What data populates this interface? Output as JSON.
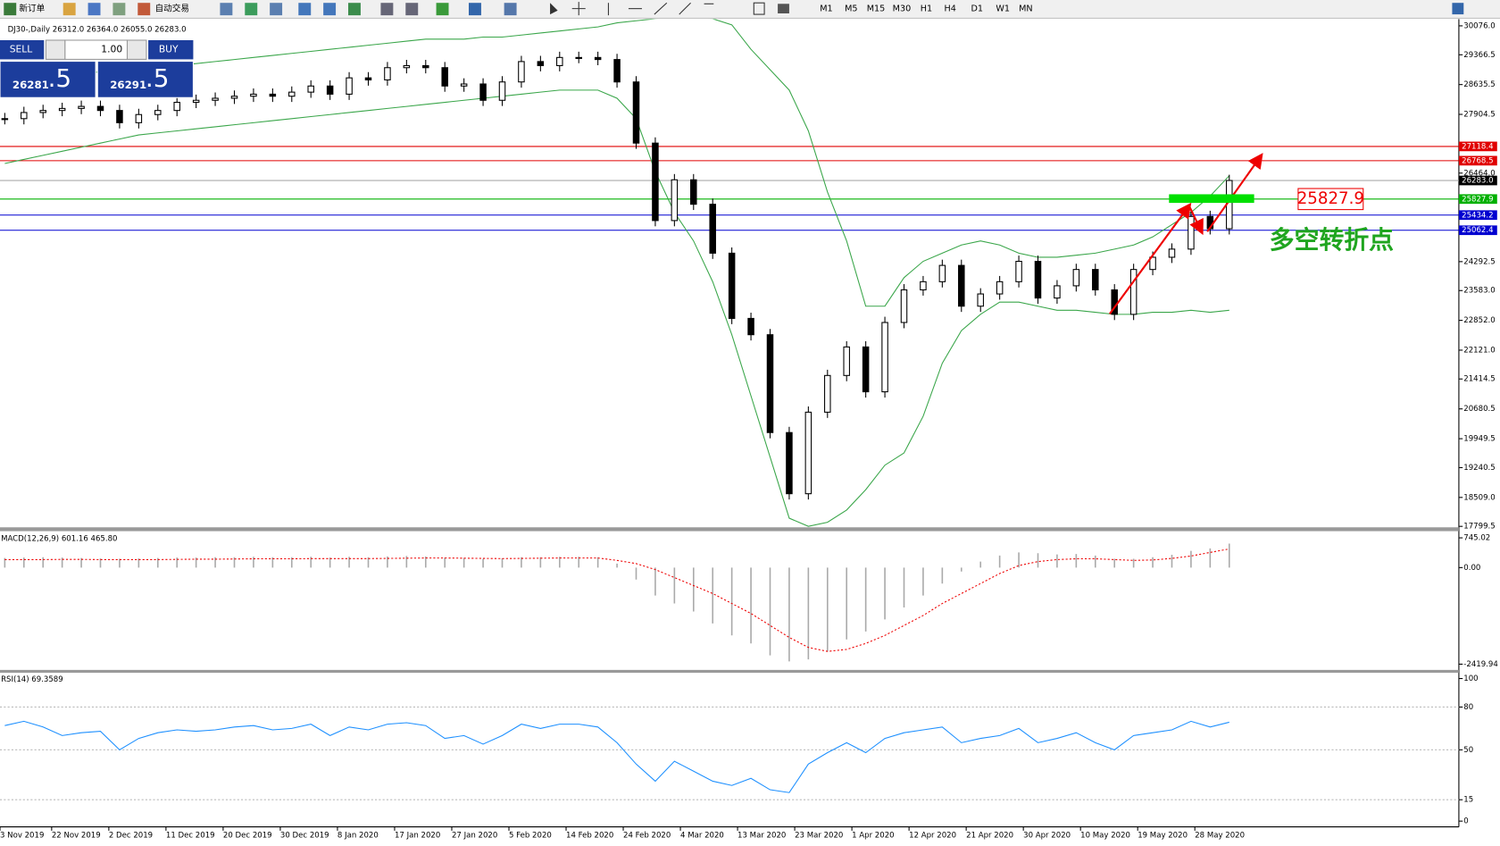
{
  "toolbar": {
    "new_order": "新订单",
    "auto_trading": "自动交易",
    "timeframes": [
      "M1",
      "M5",
      "M15",
      "M30",
      "H1",
      "H4",
      "D1",
      "W1",
      "MN"
    ]
  },
  "chart": {
    "header": "DJ30-,Daily  26312.0 26364.0 26055.0 26283.0",
    "one_click": {
      "sell": "SELL",
      "lot": "1.00",
      "buy": "BUY",
      "sell_price": "26281",
      "sell_pips": ".5",
      "buy_price": "26291",
      "buy_pips": ".5"
    },
    "price": {
      "ylim": [
        17799.5,
        30076.0
      ],
      "yticks": [
        {
          "value": 30076.0,
          "label": "30076.0"
        },
        {
          "value": 29366.5,
          "label": "29366.5"
        },
        {
          "value": 28635.5,
          "label": "28635.5"
        },
        {
          "value": 27904.5,
          "label": "27904.5"
        },
        {
          "value": 26464.0,
          "label": "26464.0"
        },
        {
          "value": 24292.5,
          "label": "24292.5"
        },
        {
          "value": 23583.0,
          "label": "23583.0"
        },
        {
          "value": 22852.0,
          "label": "22852.0"
        },
        {
          "value": 22121.0,
          "label": "22121.0"
        },
        {
          "value": 21414.5,
          "label": "21414.5"
        },
        {
          "value": 20680.5,
          "label": "20680.5"
        },
        {
          "value": 19949.5,
          "label": "19949.5"
        },
        {
          "value": 19240.5,
          "label": "19240.5"
        },
        {
          "value": 18509.0,
          "label": "18509.0"
        },
        {
          "value": 17799.5,
          "label": "17799.5"
        }
      ],
      "levels": [
        {
          "value": 27118.4,
          "label": "27118.4",
          "color": "#e00000"
        },
        {
          "value": 26768.5,
          "label": "26768.5",
          "color": "#e00000"
        },
        {
          "value": 26283.0,
          "label": "26283.0",
          "color": "#000000"
        },
        {
          "value": 25827.9,
          "label": "25827.9",
          "color": "#00b000"
        },
        {
          "value": 25434.2,
          "label": "25434.2",
          "color": "#0000d0"
        },
        {
          "value": 25062.4,
          "label": "25062.4",
          "color": "#0000d0"
        }
      ],
      "closes": [
        27800,
        27950,
        28000,
        28050,
        28100,
        28000,
        27700,
        27900,
        28000,
        28200,
        28250,
        28300,
        28350,
        28400,
        28350,
        28450,
        28600,
        28400,
        28800,
        28750,
        29050,
        29100,
        29050,
        28600,
        28650,
        28250,
        28700,
        29200,
        29100,
        29300,
        29300,
        29250,
        28700,
        27200,
        25300,
        26300,
        25700,
        24500,
        22900,
        22500,
        20100,
        18600,
        20600,
        21500,
        22200,
        21100,
        22800,
        23600,
        23800,
        24200,
        23200,
        23500,
        23800,
        24300,
        23400,
        23700,
        24100,
        23600,
        23000,
        24100,
        24400,
        24600,
        25400,
        25100,
        26283
      ],
      "upper_band": [
        28700,
        28750,
        28800,
        28850,
        28900,
        28950,
        29000,
        29050,
        29050,
        29100,
        29150,
        29200,
        29250,
        29300,
        29350,
        29400,
        29450,
        29500,
        29550,
        29600,
        29650,
        29700,
        29750,
        29750,
        29750,
        29800,
        29800,
        29850,
        29900,
        29950,
        30000,
        30050,
        30150,
        30200,
        30250,
        30300,
        30300,
        30250,
        30100,
        29500,
        29000,
        28500,
        27500,
        26000,
        24800,
        23200,
        23200,
        23900,
        24300,
        24500,
        24700,
        24800,
        24700,
        24500,
        24400,
        24400,
        24450,
        24500,
        24600,
        24700,
        24900,
        25200,
        25500,
        25900,
        26400
      ],
      "lower_band": [
        26700,
        26800,
        26900,
        27000,
        27100,
        27200,
        27300,
        27400,
        27450,
        27500,
        27550,
        27600,
        27650,
        27700,
        27750,
        27800,
        27850,
        27900,
        27950,
        28000,
        28050,
        28100,
        28150,
        28200,
        28250,
        28300,
        28350,
        28400,
        28450,
        28500,
        28500,
        28500,
        28300,
        27800,
        26500,
        25500,
        24800,
        23800,
        22500,
        21000,
        19500,
        18000,
        17800,
        17900,
        18200,
        18700,
        19300,
        19600,
        20500,
        21800,
        22600,
        23000,
        23300,
        23300,
        23200,
        23100,
        23100,
        23050,
        23000,
        23000,
        23050,
        23050,
        23100,
        23050,
        23100
      ]
    },
    "dates": [
      "3 Nov 2019",
      "22 Nov 2019",
      "2 Dec 2019",
      "11 Dec 2019",
      "20 Dec 2019",
      "30 Dec 2019",
      "8 Jan 2020",
      "17 Jan 2020",
      "27 Jan 2020",
      "5 Feb 2020",
      "14 Feb 2020",
      "24 Feb 2020",
      "4 Mar 2020",
      "13 Mar 2020",
      "23 Mar 2020",
      "1 Apr 2020",
      "12 Apr 2020",
      "21 Apr 2020",
      "30 Apr 2020",
      "10 May 2020",
      "19 May 2020",
      "28 May 2020"
    ],
    "macd": {
      "label": "MACD(12,26,9) 601.16 465.80",
      "ylim": [
        -2419.94,
        745.02
      ],
      "yticks": [
        745.02,
        {
          "value": 0,
          "label": "0.00"
        },
        -2419.94
      ],
      "histogram": [
        240,
        250,
        260,
        250,
        240,
        230,
        220,
        230,
        240,
        250,
        250,
        260,
        260,
        270,
        260,
        260,
        270,
        250,
        270,
        260,
        280,
        290,
        280,
        250,
        240,
        220,
        230,
        260,
        260,
        270,
        270,
        260,
        100,
        -300,
        -700,
        -900,
        -1100,
        -1400,
        -1700,
        -1900,
        -2200,
        -2350,
        -2300,
        -2100,
        -1800,
        -1600,
        -1300,
        -1000,
        -700,
        -400,
        -100,
        150,
        300,
        380,
        360,
        330,
        340,
        300,
        220,
        220,
        260,
        320,
        420,
        480,
        601.16
      ],
      "signal": [
        200,
        200,
        200,
        205,
        205,
        200,
        200,
        200,
        200,
        205,
        210,
        210,
        215,
        220,
        220,
        220,
        225,
        225,
        225,
        225,
        230,
        235,
        240,
        240,
        235,
        230,
        225,
        230,
        235,
        240,
        240,
        240,
        180,
        100,
        -50,
        -250,
        -450,
        -650,
        -900,
        -1150,
        -1450,
        -1750,
        -2000,
        -2100,
        -2050,
        -1900,
        -1700,
        -1450,
        -1200,
        -900,
        -650,
        -400,
        -150,
        50,
        150,
        200,
        220,
        220,
        200,
        180,
        190,
        230,
        290,
        380,
        465.8
      ]
    },
    "rsi": {
      "label": "RSI(14) 69.3589",
      "ylim": [
        0,
        100
      ],
      "yticks": [
        100,
        80,
        50,
        15,
        0
      ],
      "values": [
        67,
        70,
        66,
        60,
        62,
        63,
        50,
        58,
        62,
        64,
        63,
        64,
        66,
        67,
        64,
        65,
        68,
        60,
        66,
        64,
        68,
        69,
        67,
        58,
        60,
        54,
        60,
        68,
        65,
        68,
        68,
        66,
        55,
        40,
        28,
        42,
        35,
        28,
        25,
        30,
        22,
        20,
        40,
        48,
        55,
        48,
        58,
        62,
        64,
        66,
        55,
        58,
        60,
        65,
        55,
        58,
        62,
        55,
        50,
        60,
        62,
        64,
        70,
        66,
        69.3589
      ]
    },
    "annotations": {
      "price_label": "25827.9",
      "turning_point": "多空转折点"
    }
  }
}
